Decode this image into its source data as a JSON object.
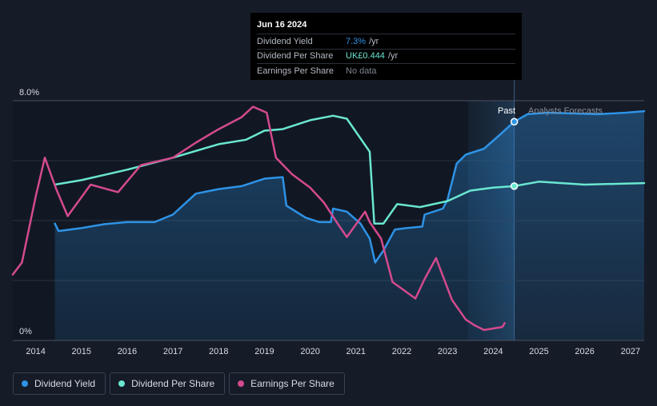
{
  "chart_data": {
    "type": "line",
    "y_axis": {
      "unit": "%",
      "ylim": [
        0,
        8
      ],
      "ticks": [
        "8.0%",
        "0%"
      ]
    },
    "x_axis": {
      "xlim": [
        2013.5,
        2027.3
      ],
      "ticks": [
        "2014",
        "2015",
        "2016",
        "2017",
        "2018",
        "2019",
        "2020",
        "2021",
        "2022",
        "2023",
        "2024",
        "2025",
        "2026",
        "2027"
      ]
    },
    "regions": {
      "past_label": "Past",
      "forecast_label": "Analysts Forecasts",
      "divider_x": 2024.46
    },
    "grid": true,
    "legend_placement": "bottom-left",
    "series": [
      {
        "name": "Dividend Yield",
        "color": "#2e93e6",
        "filled": true,
        "points": [
          [
            2014.42,
            3.9
          ],
          [
            2014.5,
            3.65
          ],
          [
            2015,
            3.75
          ],
          [
            2015.5,
            3.88
          ],
          [
            2016,
            3.95
          ],
          [
            2016.6,
            3.95
          ],
          [
            2017,
            4.2
          ],
          [
            2017.5,
            4.9
          ],
          [
            2018,
            5.05
          ],
          [
            2018.5,
            5.15
          ],
          [
            2019,
            5.4
          ],
          [
            2019.4,
            5.45
          ],
          [
            2019.48,
            4.5
          ],
          [
            2019.9,
            4.1
          ],
          [
            2020.2,
            3.95
          ],
          [
            2020.45,
            3.95
          ],
          [
            2020.5,
            4.4
          ],
          [
            2020.8,
            4.3
          ],
          [
            2021.1,
            3.9
          ],
          [
            2021.3,
            3.4
          ],
          [
            2021.42,
            2.6
          ],
          [
            2021.6,
            3.0
          ],
          [
            2021.85,
            3.7
          ],
          [
            2022.1,
            3.75
          ],
          [
            2022.45,
            3.8
          ],
          [
            2022.5,
            4.2
          ],
          [
            2022.9,
            4.4
          ],
          [
            2023.0,
            4.7
          ],
          [
            2023.2,
            5.9
          ],
          [
            2023.4,
            6.2
          ],
          [
            2023.8,
            6.4
          ],
          [
            2024.1,
            6.8
          ],
          [
            2024.46,
            7.3
          ],
          [
            2024.75,
            7.55
          ],
          [
            2025.2,
            7.6
          ],
          [
            2026.3,
            7.55
          ],
          [
            2026.9,
            7.6
          ],
          [
            2027.3,
            7.65
          ]
        ]
      },
      {
        "name": "Dividend Per Share",
        "color": "#6ae7d0",
        "filled": false,
        "points": [
          [
            2014.42,
            5.2
          ],
          [
            2015,
            5.35
          ],
          [
            2016,
            5.7
          ],
          [
            2017,
            6.1
          ],
          [
            2018,
            6.55
          ],
          [
            2018.6,
            6.7
          ],
          [
            2019,
            7.0
          ],
          [
            2019.4,
            7.05
          ],
          [
            2020,
            7.35
          ],
          [
            2020.5,
            7.5
          ],
          [
            2020.8,
            7.4
          ],
          [
            2021.3,
            6.3
          ],
          [
            2021.4,
            3.9
          ],
          [
            2021.6,
            3.9
          ],
          [
            2021.9,
            4.55
          ],
          [
            2022.4,
            4.45
          ],
          [
            2023,
            4.65
          ],
          [
            2023.5,
            5.0
          ],
          [
            2024,
            5.1
          ],
          [
            2024.46,
            5.15
          ],
          [
            2025,
            5.3
          ],
          [
            2025.5,
            5.25
          ],
          [
            2026,
            5.2
          ],
          [
            2027.3,
            5.25
          ]
        ]
      },
      {
        "name": "Earnings Per Share",
        "color": "#d44a8e",
        "filled": false,
        "points": [
          [
            2013.5,
            2.2
          ],
          [
            2013.7,
            2.6
          ],
          [
            2014,
            4.8
          ],
          [
            2014.2,
            6.1
          ],
          [
            2014.45,
            5.05
          ],
          [
            2014.7,
            4.15
          ],
          [
            2015.2,
            5.2
          ],
          [
            2015.8,
            4.95
          ],
          [
            2016.3,
            5.85
          ],
          [
            2017,
            6.1
          ],
          [
            2017.5,
            6.6
          ],
          [
            2018,
            7.05
          ],
          [
            2018.5,
            7.45
          ],
          [
            2018.75,
            7.8
          ],
          [
            2019.05,
            7.6
          ],
          [
            2019.25,
            6.1
          ],
          [
            2019.6,
            5.55
          ],
          [
            2020,
            5.1
          ],
          [
            2020.3,
            4.6
          ],
          [
            2020.6,
            3.9
          ],
          [
            2020.8,
            3.45
          ],
          [
            2021.2,
            4.3
          ],
          [
            2021.3,
            3.95
          ],
          [
            2021.55,
            3.4
          ],
          [
            2021.8,
            1.95
          ],
          [
            2022.3,
            1.4
          ],
          [
            2022.5,
            2.05
          ],
          [
            2022.75,
            2.75
          ],
          [
            2023.1,
            1.35
          ],
          [
            2023.4,
            0.7
          ],
          [
            2023.6,
            0.5
          ],
          [
            2023.8,
            0.35
          ],
          [
            2024.2,
            0.45
          ],
          [
            2024.25,
            0.58
          ]
        ]
      }
    ]
  },
  "tooltip": {
    "date": "Jun 16 2024",
    "rows": [
      {
        "label": "Dividend Yield",
        "value": "7.3%",
        "unit": "/yr",
        "color": "#2e93e6"
      },
      {
        "label": "Dividend Per Share",
        "value": "UK£0.444",
        "unit": "/yr",
        "color": "#6ae7d0"
      },
      {
        "label": "Earnings Per Share",
        "value": "No data",
        "unit": "",
        "color": "#7d838d"
      }
    ]
  },
  "legend": [
    {
      "label": "Dividend Yield",
      "color": "#2e93e6"
    },
    {
      "label": "Dividend Per Share",
      "color": "#6ae7d0"
    },
    {
      "label": "Earnings Per Share",
      "color": "#d44a8e"
    }
  ]
}
